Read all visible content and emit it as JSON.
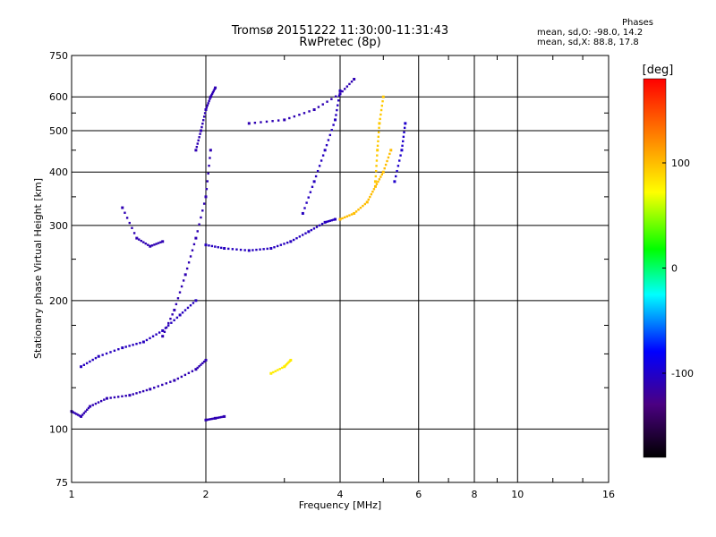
{
  "header": {
    "title_line1": "Tromsø 20151222 11:30:00-11:31:43",
    "title_line2": "RwPretec (8p)"
  },
  "stats": {
    "heading": "Phases",
    "line1": "mean, sd,O: -98.0, 14.2",
    "line2": "mean, sd,X: 88.8, 17.8"
  },
  "chart_data": {
    "type": "scatter",
    "title": "Tromsø 20151222 11:30:00-11:31:43",
    "subtitle": "RwPretec (8p)",
    "xlabel": "Frequency [MHz]",
    "ylabel": "Stationary phase Virtual Height [km]",
    "x_scale": "log",
    "y_scale": "log",
    "xlim": [
      1,
      16
    ],
    "ylim": [
      75,
      750
    ],
    "x_ticks": [
      1,
      2,
      4,
      6,
      8,
      10,
      16
    ],
    "y_ticks": [
      75,
      100,
      200,
      300,
      400,
      500,
      600,
      750
    ],
    "grid": true,
    "colorbar": {
      "label": "[deg]",
      "range": [
        -180,
        180
      ],
      "ticks": [
        100,
        0,
        -100
      ],
      "colormap": [
        "#000000",
        "#4b0082",
        "#0000ff",
        "#00ffff",
        "#00ff00",
        "#ffff00",
        "#ff8000",
        "#ff0000"
      ]
    },
    "series": [
      {
        "x": [
          1.0,
          1.05,
          1.1,
          1.2,
          1.35,
          1.5,
          1.7,
          1.9,
          2.0
        ],
        "y": [
          110,
          107,
          113,
          118,
          120,
          124,
          130,
          138,
          145
        ],
        "phase": -110
      },
      {
        "x": [
          1.05,
          1.15,
          1.3,
          1.45,
          1.6,
          1.75,
          1.9
        ],
        "y": [
          140,
          148,
          155,
          160,
          170,
          185,
          200
        ],
        "phase": -105
      },
      {
        "x": [
          1.6,
          1.7,
          1.8,
          1.9,
          2.0,
          2.05
        ],
        "y": [
          165,
          190,
          230,
          280,
          350,
          450
        ],
        "phase": -110
      },
      {
        "x": [
          1.9,
          1.95,
          2.0,
          2.05,
          2.1
        ],
        "y": [
          450,
          500,
          560,
          600,
          630
        ],
        "phase": -110
      },
      {
        "x": [
          2.0,
          2.2,
          2.5,
          2.8,
          3.1,
          3.4,
          3.7,
          3.9
        ],
        "y": [
          270,
          265,
          262,
          265,
          275,
          290,
          305,
          310
        ],
        "phase": -105
      },
      {
        "x": [
          1.3,
          1.4,
          1.5,
          1.6
        ],
        "y": [
          330,
          280,
          268,
          275
        ],
        "phase": -110
      },
      {
        "x": [
          2.5,
          3.0,
          3.5,
          4.0,
          4.3
        ],
        "y": [
          520,
          530,
          560,
          610,
          660
        ],
        "phase": -110
      },
      {
        "x": [
          3.3,
          3.5,
          3.7,
          3.9,
          4.0
        ],
        "y": [
          320,
          380,
          450,
          530,
          620
        ],
        "phase": -105
      },
      {
        "x": [
          4.0,
          4.3,
          4.6,
          4.8,
          5.0,
          5.2
        ],
        "y": [
          310,
          320,
          340,
          370,
          400,
          450
        ],
        "phase": 100
      },
      {
        "x": [
          4.8,
          4.85,
          4.9,
          5.0
        ],
        "y": [
          380,
          450,
          520,
          600
        ],
        "phase": 95
      },
      {
        "x": [
          5.3,
          5.5,
          5.6
        ],
        "y": [
          380,
          450,
          520
        ],
        "phase": -100
      },
      {
        "x": [
          2.8,
          3.0,
          3.1
        ],
        "y": [
          135,
          140,
          145
        ],
        "phase": 80
      },
      {
        "x": [
          2.0,
          2.1,
          2.2
        ],
        "y": [
          105,
          106,
          107
        ],
        "phase": -110
      }
    ]
  }
}
